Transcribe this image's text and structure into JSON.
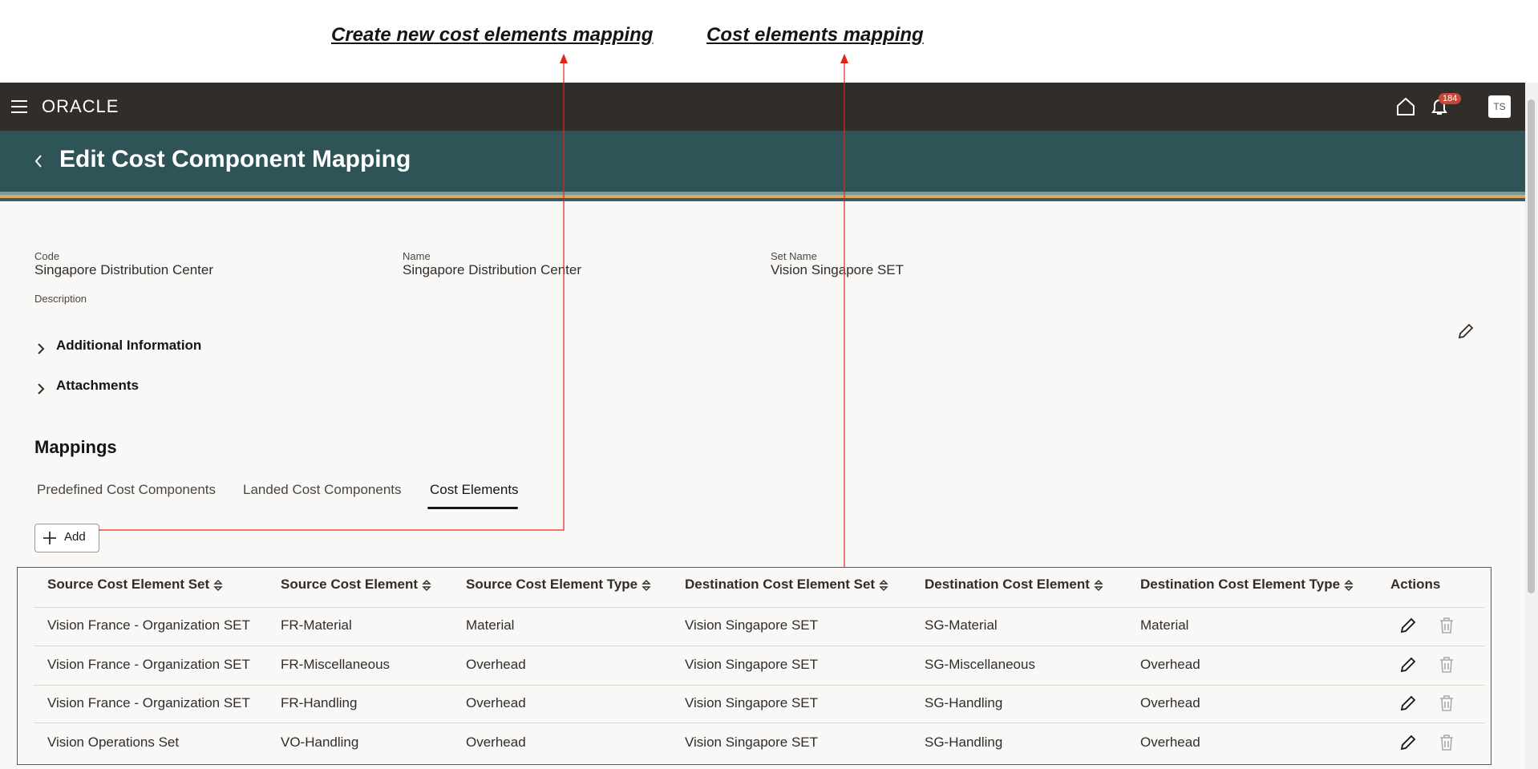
{
  "annotations": [
    "Create new cost elements mapping",
    "Cost elements mapping"
  ],
  "topbar": {
    "logo": "ORACLE",
    "notifications": "184",
    "avatar": "TS"
  },
  "header": {
    "title": "Edit Cost Component Mapping"
  },
  "fields": [
    {
      "label": "Code",
      "value": "Singapore Distribution Center"
    },
    {
      "label": "Name",
      "value": "Singapore Distribution Center"
    },
    {
      "label": "Set Name",
      "value": "Vision Singapore SET"
    },
    {
      "label": "Description"
    }
  ],
  "sections": [
    "Additional Information",
    "Attachments"
  ],
  "mappings": {
    "title": "Mappings",
    "tabs": [
      "Predefined Cost Components",
      "Landed Cost Components",
      "Cost Elements"
    ],
    "add": "Add"
  },
  "table": {
    "columns": [
      "Source Cost Element Set",
      "Source Cost Element",
      "Source Cost Element Type",
      "Destination Cost Element Set",
      "Destination Cost Element",
      "Destination Cost Element Type",
      "Actions"
    ],
    "rows": [
      [
        "Vision France - Organization SET",
        "FR-Material",
        "Material",
        "Vision Singapore SET",
        "SG-Material",
        "Material"
      ],
      [
        "Vision France - Organization SET",
        "FR-Miscellaneous",
        "Overhead",
        "Vision Singapore SET",
        "SG-Miscellaneous",
        "Overhead"
      ],
      [
        "Vision France - Organization SET",
        "FR-Handling",
        "Overhead",
        "Vision Singapore SET",
        "SG-Handling",
        "Overhead"
      ],
      [
        "Vision Operations Set",
        "VO-Handling",
        "Overhead",
        "Vision Singapore SET",
        "SG-Handling",
        "Overhead"
      ]
    ]
  }
}
